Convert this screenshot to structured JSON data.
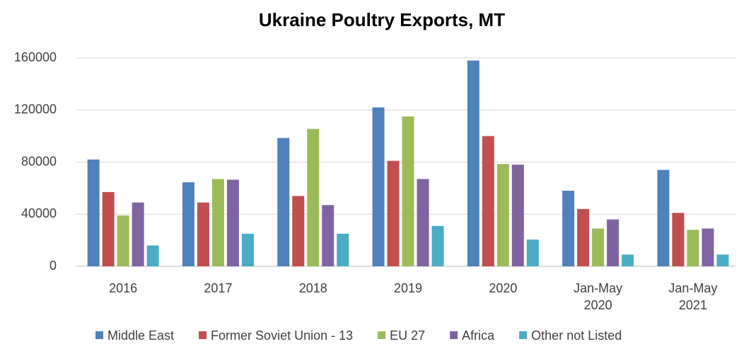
{
  "chart_data": {
    "type": "bar",
    "title": "Ukraine Poultry Exports, MT",
    "categories": [
      "2016",
      "2017",
      "2018",
      "2019",
      "2020",
      "Jan-May 2020",
      "Jan-May 2021"
    ],
    "series": [
      {
        "name": "Middle East",
        "color": "#4f81bd",
        "values": [
          82000,
          64500,
          98500,
          122000,
          158000,
          58000,
          74000
        ]
      },
      {
        "name": "Former Soviet Union - 13",
        "color": "#c0504d",
        "values": [
          57000,
          49000,
          54000,
          81000,
          100000,
          44000,
          41000
        ]
      },
      {
        "name": "EU 27",
        "color": "#9bbb59",
        "values": [
          39000,
          67000,
          105500,
          115000,
          78500,
          29000,
          28000
        ]
      },
      {
        "name": "Africa",
        "color": "#8064a2",
        "values": [
          49000,
          66500,
          47000,
          67000,
          78000,
          36000,
          29000
        ]
      },
      {
        "name": "Other not Listed",
        "color": "#4bacc6",
        "values": [
          16000,
          25000,
          25000,
          31000,
          20500,
          9000,
          9000
        ]
      }
    ],
    "ylim": [
      0,
      160000
    ],
    "yticks": [
      0,
      40000,
      80000,
      120000,
      160000
    ],
    "grid": true,
    "legend": "bottom"
  }
}
